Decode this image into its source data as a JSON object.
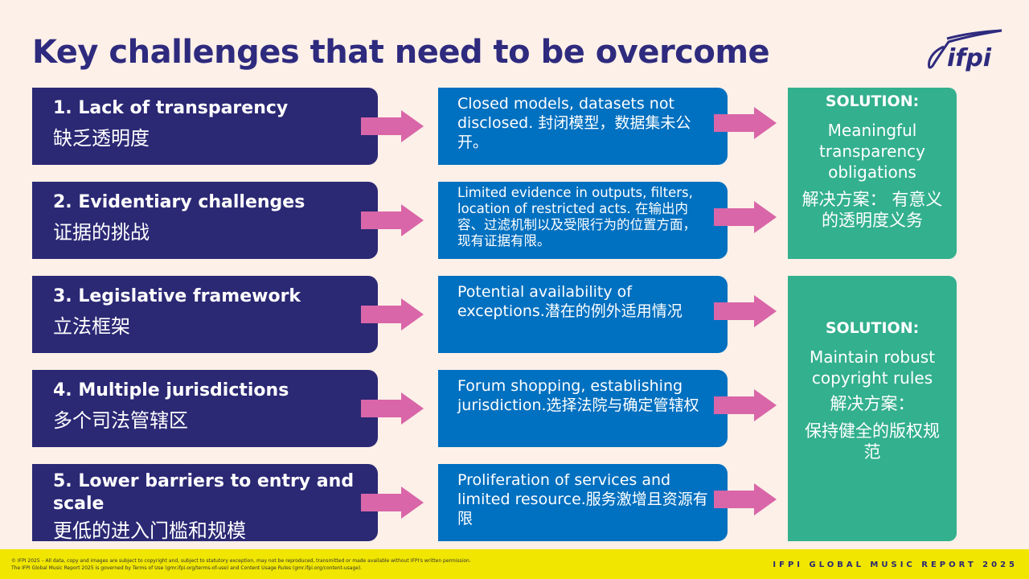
{
  "title": "Key challenges that need to be overcome",
  "logo": "ifpi",
  "challenges": [
    {
      "en": "1. Lack of transparency",
      "zh": "缺乏透明度",
      "detail": "Closed models, datasets not disclosed. 封闭模型，数据集未公开。"
    },
    {
      "en": "2. Evidentiary challenges",
      "zh": "证据的挑战",
      "detail": "Limited evidence in outputs, filters, location of restricted acts. 在输出内容、过滤机制以及受限行为的位置方面，现有证据有限。"
    },
    {
      "en": "3. Legislative framework",
      "zh": "立法框架",
      "detail": "Potential availability of exceptions.潜在的例外适用情况"
    },
    {
      "en": "4. Multiple jurisdictions",
      "zh": "多个司法管辖区",
      "detail": "Forum shopping, establishing jurisdiction.选择法院与确定管辖权"
    },
    {
      "en": "5. Lower barriers to entry and scale",
      "zh": "更低的进入门槛和规模",
      "detail": "Proliferation of services and limited resource.服务激增且资源有限"
    }
  ],
  "solutions": [
    {
      "heading": "SOLUTION:",
      "en": "Meaningful transparency obligations",
      "zh": "解决方案： 有意义的透明度义务"
    },
    {
      "heading": "SOLUTION:",
      "en": "Maintain robust copyright rules",
      "zh": "解决方案：",
      "zh2": "保持健全的版权规范"
    }
  ],
  "footer": {
    "line1": "© IFPI 2025 – All data, copy and images are subject to copyright and, subject to statutory exception, may not be reproduced, transmitted or made available without IFPI's written permission.",
    "line2": "The IFPI Global Music Report 2025 is governed by Terms of Use (gmr.ifpi.org/terms-of-use) and Content Usage Rules (gmr.ifpi.org/content-usage).",
    "brand": "IFPI GLOBAL MUSIC REPORT 2025"
  },
  "colors": {
    "navy": "#2b2874",
    "blue": "#0070c0",
    "teal": "#33b08e",
    "arrow": "#d966a8",
    "footer": "#f0e600"
  }
}
